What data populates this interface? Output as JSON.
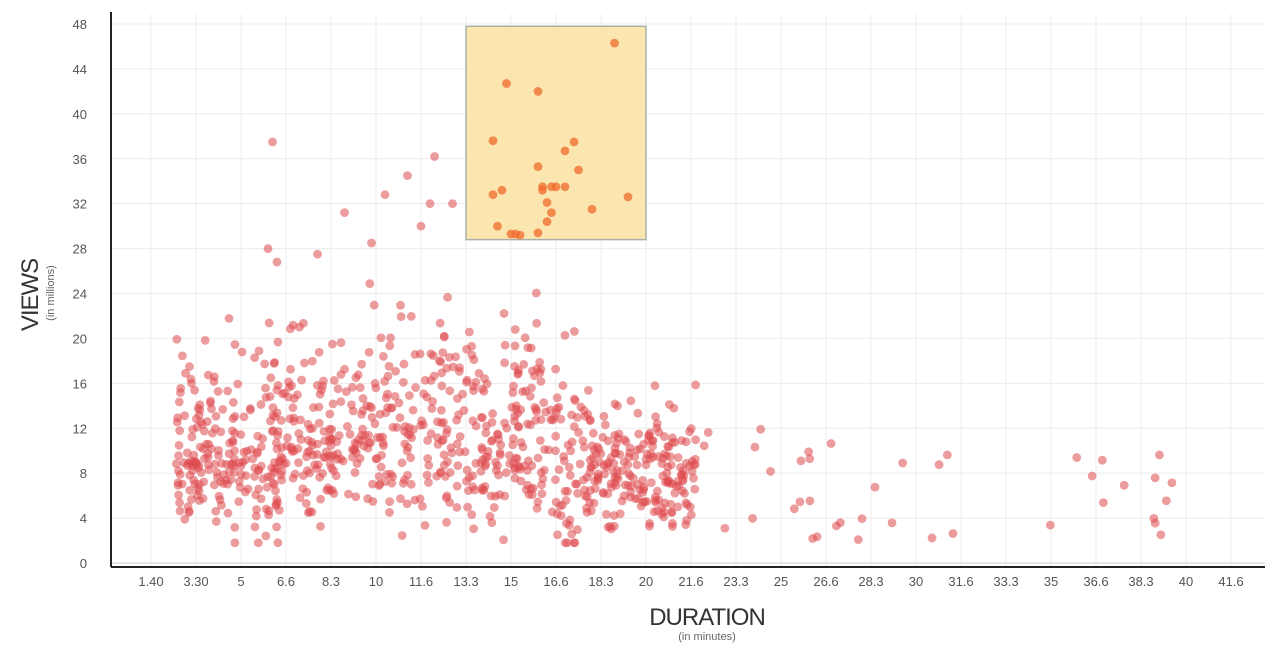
{
  "chart_data": {
    "type": "scatter",
    "title": "",
    "xlabel": "DURATION",
    "xlabel_sub": "(in minutes)",
    "ylabel": "VIEWS",
    "ylabel_sub": "(in millions)",
    "x_tick_labels": [
      "1.40",
      "3.30",
      "5",
      "6.6",
      "8.3",
      "10",
      "11.6",
      "13.3",
      "15",
      "16.6",
      "18.3",
      "20",
      "21.6",
      "23.3",
      "25",
      "26.6",
      "28.3",
      "30",
      "31.6",
      "33.3",
      "35",
      "36.6",
      "38.3",
      "40",
      "41.6"
    ],
    "y_tick_labels": [
      "0",
      "4",
      "8",
      "12",
      "16",
      "20",
      "24",
      "28",
      "32",
      "36",
      "40",
      "44",
      "48"
    ],
    "y_ticks": [
      0,
      4,
      8,
      12,
      16,
      20,
      24,
      28,
      32,
      36,
      40,
      44,
      48
    ],
    "ylim": [
      0,
      48
    ],
    "xlim_index": [
      0,
      24
    ],
    "grid": true,
    "highlight_region": {
      "x_range": [
        13.3,
        20
      ],
      "y_range": [
        28.8,
        47.8
      ],
      "color": "#fce3a6"
    },
    "points_note": "~1000 video points; x = duration (tick-index units), y = views (millions)",
    "point_color": "#de4b4f",
    "highlight_point_color": "#ef6b2e"
  }
}
